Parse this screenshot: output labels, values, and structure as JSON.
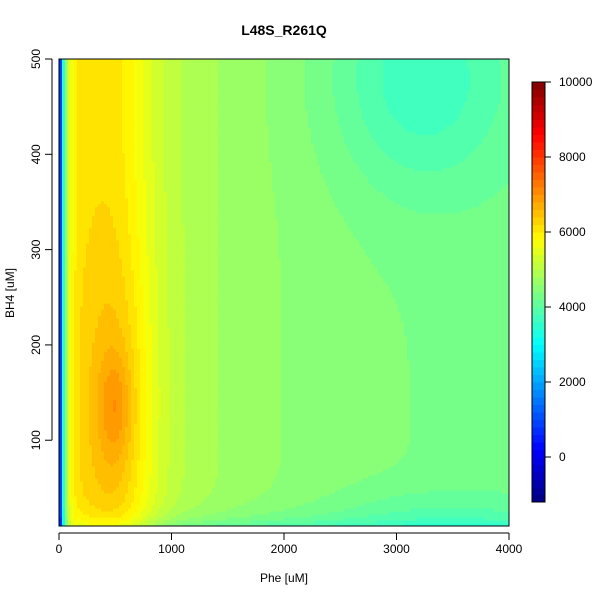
{
  "chart_data": {
    "type": "heatmap",
    "title": "L48S_R261Q",
    "xlabel": "Phe [uM]",
    "ylabel": "BH4 [uM]",
    "xlim": [
      0,
      4000
    ],
    "ylim": [
      10,
      500
    ],
    "x_ticks": [
      "0",
      "1000",
      "2000",
      "3000",
      "4000"
    ],
    "x_tick_values": [
      0,
      1000,
      2000,
      3000,
      4000
    ],
    "y_ticks": [
      "100",
      "200",
      "300",
      "400",
      "500"
    ],
    "y_tick_values": [
      100,
      200,
      300,
      400,
      500
    ],
    "colorbar": {
      "ticks": [
        "0",
        "2000",
        "4000",
        "6000",
        "8000",
        "10000"
      ],
      "tick_values": [
        0,
        2000,
        4000,
        6000,
        8000,
        10000
      ],
      "range": [
        -1200,
        10000
      ],
      "palette": "jet",
      "colors": [
        "#00007F",
        "#0000FF",
        "#007FFF",
        "#00FFFF",
        "#7FFF7F",
        "#FFFF00",
        "#FF7F00",
        "#FF0000",
        "#7F0000"
      ]
    },
    "surface_description_values": {
      "peak": {
        "phe": 500,
        "bh4": 130,
        "value": 5900
      },
      "low_edge": {
        "phe": 0,
        "value": -1000
      },
      "plateau": {
        "value": 4500
      },
      "upper_right_min": {
        "phe": 3200,
        "bh4": 480,
        "value": 3700
      }
    }
  }
}
